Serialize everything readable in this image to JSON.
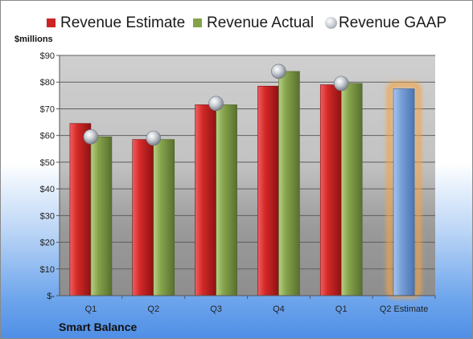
{
  "chart_data": {
    "type": "bar",
    "title": "",
    "xlabel": "",
    "ylabel": "$millions",
    "ylim": [
      0,
      90
    ],
    "ytick_values": [
      0,
      10,
      20,
      30,
      40,
      50,
      60,
      70,
      80,
      90
    ],
    "ytick_labels": [
      "$-",
      "$10",
      "$20",
      "$30",
      "$40",
      "$50",
      "$60",
      "$70",
      "$80",
      "$90"
    ],
    "categories": [
      "Q1",
      "Q2",
      "Q3",
      "Q4",
      "Q1",
      "Q2 Estimate"
    ],
    "series": [
      {
        "name": "Revenue Estimate",
        "values": [
          64.5,
          58.5,
          71.5,
          78.5,
          79.0,
          77.5
        ]
      },
      {
        "name": "Revenue Actual",
        "values": [
          59.5,
          58.5,
          71.5,
          84.0,
          79.5,
          null
        ]
      },
      {
        "name": "Revenue GAAP",
        "values": [
          59.5,
          59.0,
          72.0,
          84.0,
          79.5,
          null
        ]
      }
    ],
    "highlighted_category": "Q2 Estimate",
    "grid": true,
    "legend_position": "top",
    "company": "Smart Balance"
  },
  "colors": {
    "estimate": "#cc2424",
    "actual": "#84a24a",
    "gaap": "#b8bcc4",
    "highlight_bar": "#6f9ad2",
    "highlight_glow": "#f2a44a",
    "plot_bg": "#c8c8c8"
  }
}
